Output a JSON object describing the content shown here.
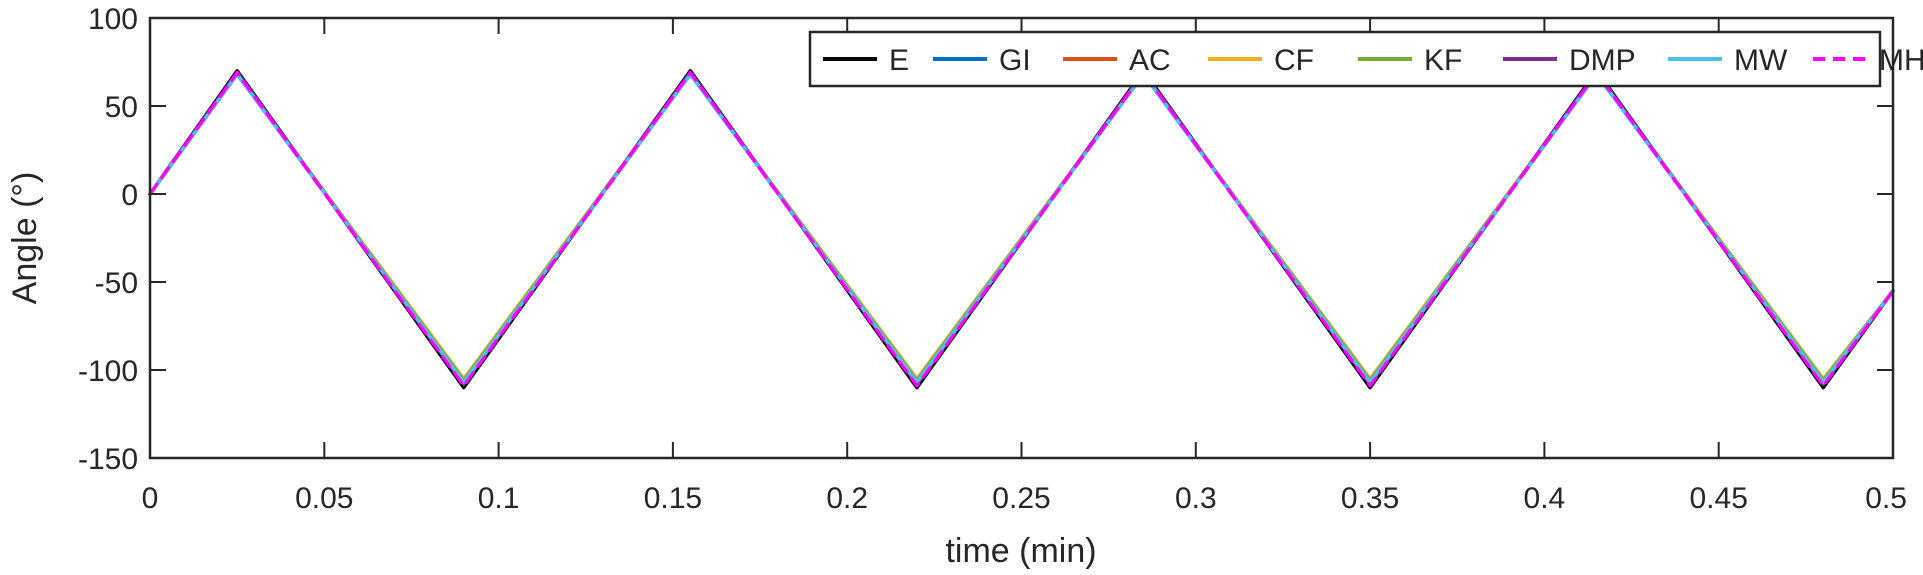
{
  "chart_data": {
    "type": "line",
    "xlabel": "time (min)",
    "ylabel": "Angle (°)",
    "xlim": [
      0,
      0.5
    ],
    "ylim": [
      -150,
      100
    ],
    "xticks": [
      0,
      0.05,
      0.1,
      0.15,
      0.2,
      0.25,
      0.3,
      0.35,
      0.4,
      0.45,
      0.5
    ],
    "xtick_labels": [
      "0",
      "0.05",
      "0.1",
      "0.15",
      "0.2",
      "0.25",
      "0.3",
      "0.35",
      "0.4",
      "0.45",
      "0.5"
    ],
    "yticks": [
      100,
      50,
      0,
      -50,
      -100,
      -150
    ],
    "ytick_labels": [
      "100",
      "50",
      "0",
      "-50",
      "-100",
      "-150"
    ],
    "grid": false,
    "legend_position": "top-right",
    "legend_orientation": "horizontal",
    "series": [
      {
        "name": "E",
        "color": "#000000",
        "dash": "solid",
        "x": [
          0,
          0.025,
          0.09,
          0.155,
          0.22,
          0.285,
          0.35,
          0.415,
          0.48,
          0.5
        ],
        "y": [
          0,
          70,
          -110,
          70,
          -110,
          70,
          -110,
          70,
          -110,
          -55
        ]
      },
      {
        "name": "GI",
        "color": "#0072BD",
        "dash": "solid",
        "x": [
          0,
          0.025,
          0.09,
          0.155,
          0.22,
          0.285,
          0.35,
          0.415,
          0.48,
          0.5
        ],
        "y": [
          0,
          69,
          -108,
          69,
          -108,
          69,
          -108,
          69,
          -108,
          -55
        ]
      },
      {
        "name": "AC",
        "color": "#D95319",
        "dash": "solid",
        "x": [
          0,
          0.025,
          0.09,
          0.155,
          0.22,
          0.285,
          0.35,
          0.415,
          0.48,
          0.5
        ],
        "y": [
          0,
          68,
          -106,
          68,
          -106,
          68,
          -106,
          68,
          -106,
          -55
        ]
      },
      {
        "name": "CF",
        "color": "#EDB120",
        "dash": "solid",
        "x": [
          0,
          0.025,
          0.09,
          0.155,
          0.22,
          0.285,
          0.35,
          0.415,
          0.48,
          0.5
        ],
        "y": [
          0,
          68,
          -105,
          68,
          -105,
          68,
          -105,
          68,
          -105,
          -55
        ]
      },
      {
        "name": "KF",
        "color": "#77AC30",
        "dash": "solid",
        "x": [
          0,
          0.025,
          0.09,
          0.155,
          0.22,
          0.285,
          0.35,
          0.415,
          0.48,
          0.5
        ],
        "y": [
          0,
          68,
          -106,
          68,
          -106,
          68,
          -106,
          68,
          -106,
          -55
        ]
      },
      {
        "name": "DMP",
        "color": "#7E2F8E",
        "dash": "solid",
        "x": [
          0,
          0.025,
          0.09,
          0.155,
          0.22,
          0.285,
          0.35,
          0.415,
          0.48,
          0.5
        ],
        "y": [
          0,
          69,
          -108,
          69,
          -108,
          69,
          -108,
          69,
          -108,
          -55
        ]
      },
      {
        "name": "MW",
        "color": "#4DBEEE",
        "dash": "solid",
        "x": [
          0,
          0.025,
          0.09,
          0.155,
          0.22,
          0.285,
          0.35,
          0.415,
          0.48,
          0.5
        ],
        "y": [
          0,
          68,
          -107,
          68,
          -107,
          68,
          -107,
          68,
          -107,
          -55
        ]
      },
      {
        "name": "MH",
        "color": "#FF00FF",
        "dash": "dashed",
        "x": [
          0,
          0.025,
          0.09,
          0.155,
          0.22,
          0.285,
          0.35,
          0.415,
          0.48,
          0.5
        ],
        "y": [
          0,
          69,
          -109,
          69,
          -109,
          69,
          -109,
          69,
          -109,
          -55
        ]
      }
    ]
  }
}
